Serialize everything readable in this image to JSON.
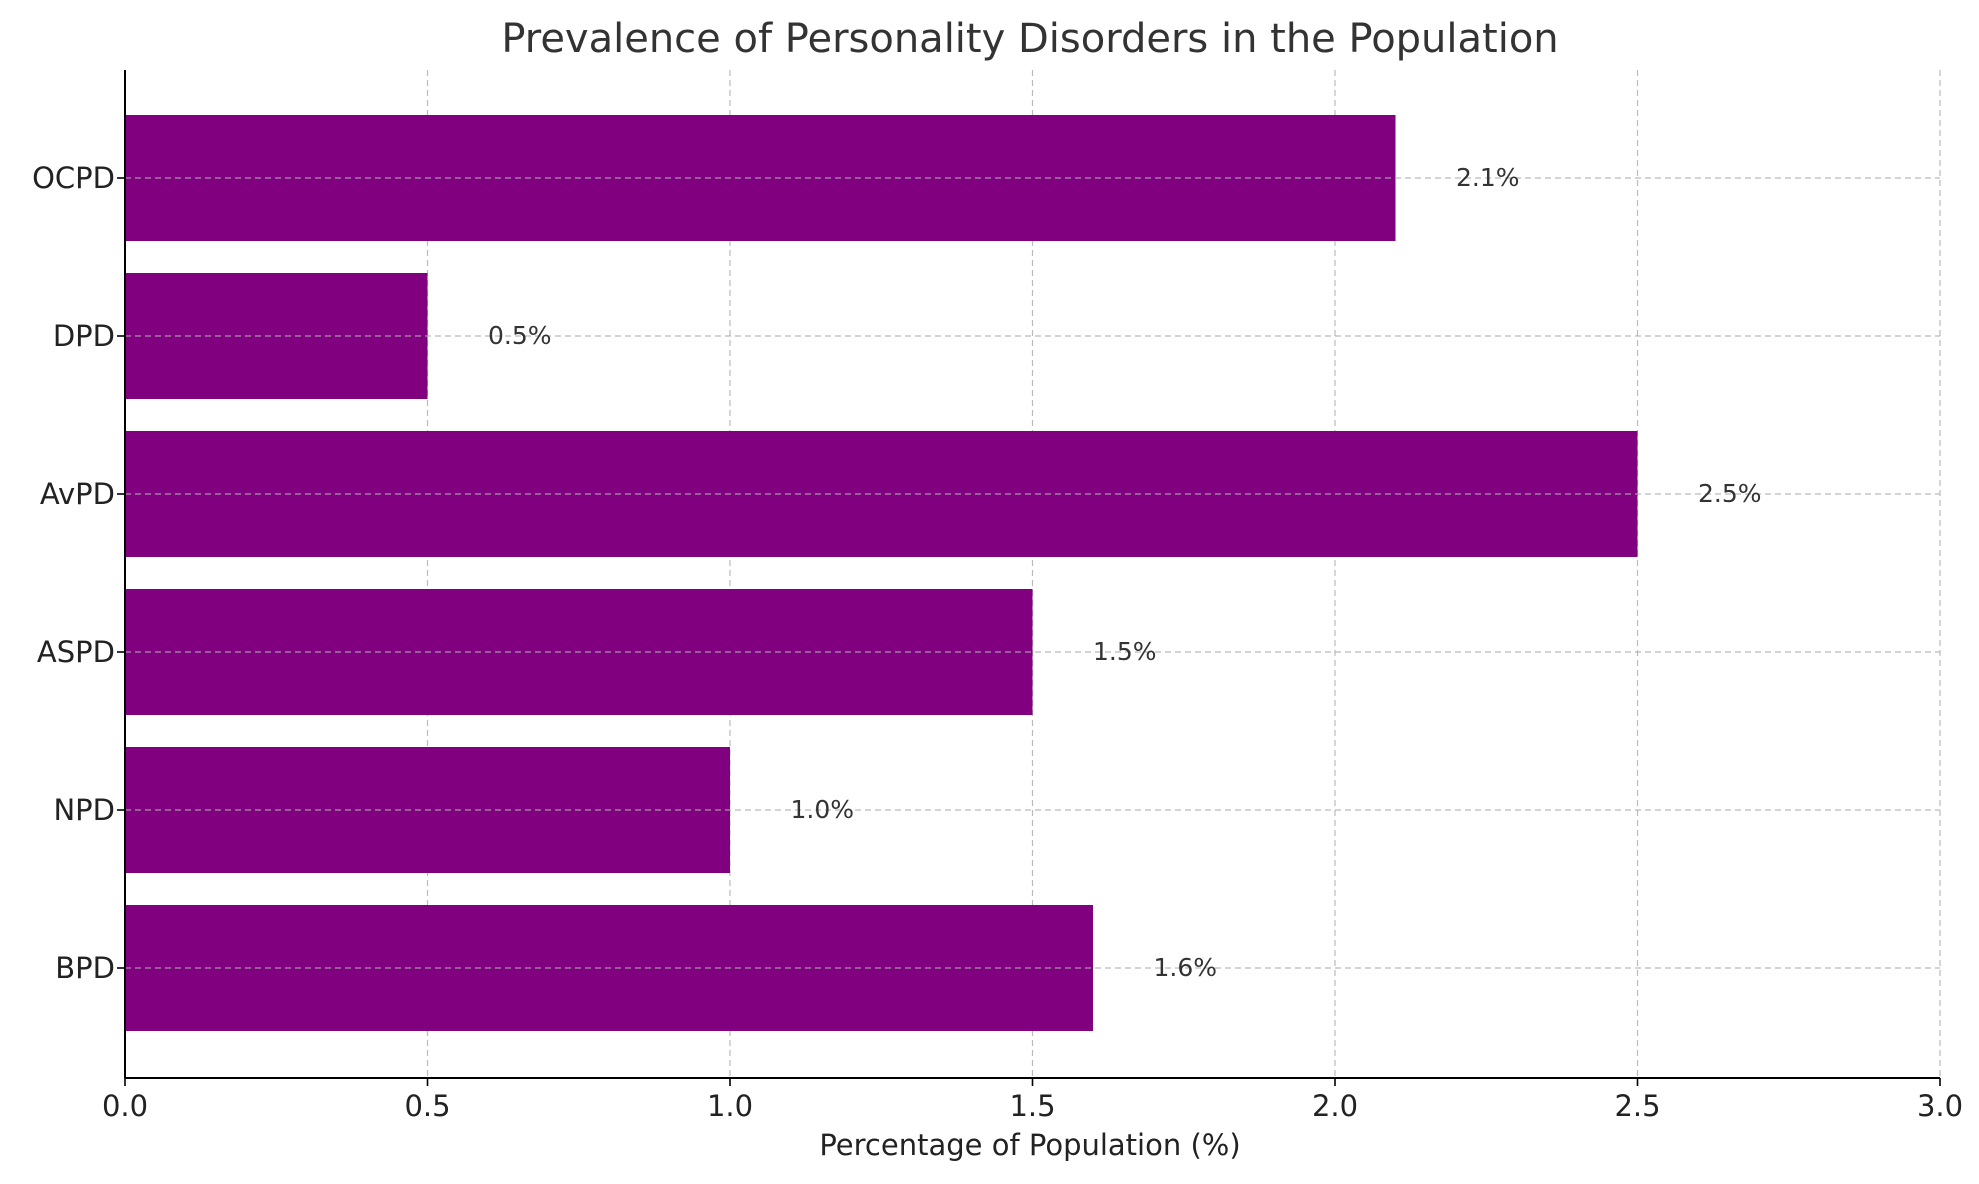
{
  "chart_data": {
    "type": "bar",
    "orientation": "horizontal",
    "title": "Prevalence of Personality Disorders in the Population",
    "xlabel": "Percentage of Population (%)",
    "ylabel": "",
    "categories": [
      "BPD",
      "NPD",
      "ASPD",
      "AvPD",
      "DPD",
      "OCPD"
    ],
    "values": [
      1.6,
      1.0,
      1.5,
      2.5,
      0.5,
      2.1
    ],
    "value_labels": [
      "1.6%",
      "1.0%",
      "1.5%",
      "2.5%",
      "0.5%",
      "2.1%"
    ],
    "xlim": [
      0,
      3.0
    ],
    "xticks": [
      "0.0",
      "0.5",
      "1.0",
      "1.5",
      "2.0",
      "2.5",
      "3.0"
    ],
    "grid": true,
    "bar_color": "#800080"
  }
}
